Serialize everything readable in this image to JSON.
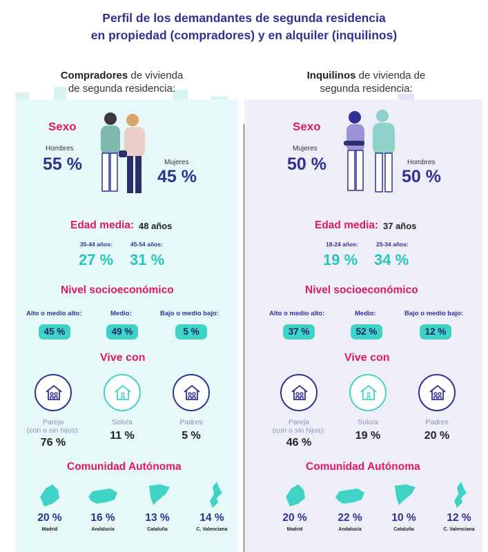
{
  "title": {
    "line1": "Perfil de los demandantes de segunda residencia",
    "line2": "en propiedad (compradores) y en alquiler (inquilinos)"
  },
  "colors": {
    "navy": "#2e3192",
    "pink": "#e0195e",
    "teal": "#3fd3c6",
    "left_bg": "#e6f8f7",
    "right_bg": "#eeeef8"
  },
  "left": {
    "head_bold": "Compradores",
    "head_rest1": " de vivienda",
    "head_line2": "de segunda residencia:",
    "sexo": {
      "title": "Sexo",
      "a_label": "Hombres",
      "a_value": "55 %",
      "b_label": "Mujeres",
      "b_value": "45 %"
    },
    "edad": {
      "title": "Edad media:",
      "value": "48 años",
      "g1_label": "35-44 años:",
      "g1_value": "27 %",
      "g2_label": "45-54 años:",
      "g2_value": "31 %"
    },
    "nivel": {
      "title": "Nivel socioeconómico",
      "items": [
        {
          "label": "Alto o medio alto:",
          "value": "45 %"
        },
        {
          "label": "Medio:",
          "value": "49 %"
        },
        {
          "label": "Bajo o medio bajo:",
          "value": "5 %"
        }
      ]
    },
    "vive": {
      "title": "Vive con",
      "items": [
        {
          "label1": "Pareja",
          "label2": "(con o sin hijos):",
          "value": "76 %"
        },
        {
          "label1": "Solo/a",
          "label2": "",
          "value": "11 %"
        },
        {
          "label1": "Padres",
          "label2": "",
          "value": "5 %"
        }
      ]
    },
    "comunidad": {
      "title": "Comunidad Autónoma",
      "items": [
        {
          "name": "Madrid",
          "value": "20 %"
        },
        {
          "name": "Andalucía",
          "value": "16 %"
        },
        {
          "name": "Cataluña",
          "value": "13 %"
        },
        {
          "name": "C. Valenciana",
          "value": "14 %"
        }
      ]
    }
  },
  "right": {
    "head_bold": "Inquilinos",
    "head_rest1": " de vivienda de",
    "head_line2": "segunda residencia:",
    "sexo": {
      "title": "Sexo",
      "a_label": "Mujeres",
      "a_value": "50 %",
      "b_label": "Hombres",
      "b_value": "50 %"
    },
    "edad": {
      "title": "Edad media:",
      "value": "37 años",
      "g1_label": "18-24 años:",
      "g1_value": "19 %",
      "g2_label": "25-34 años:",
      "g2_value": "34 %"
    },
    "nivel": {
      "title": "Nivel socioeconómico",
      "items": [
        {
          "label": "Alto o medio alto:",
          "value": "37 %"
        },
        {
          "label": "Medio:",
          "value": "52 %"
        },
        {
          "label": "Bajo o medio bajo:",
          "value": "12 %"
        }
      ]
    },
    "vive": {
      "title": "Vive con",
      "items": [
        {
          "label1": "Pareja",
          "label2": "(con o sin hijos):",
          "value": "46 %"
        },
        {
          "label1": "Solo/a",
          "label2": "",
          "value": "19 %"
        },
        {
          "label1": "Padres",
          "label2": "",
          "value": "20 %"
        }
      ]
    },
    "comunidad": {
      "title": "Comunidad Autónoma",
      "items": [
        {
          "name": "Madrid",
          "value": "20 %"
        },
        {
          "name": "Andalucía",
          "value": "22 %"
        },
        {
          "name": "Cataluña",
          "value": "10 %"
        },
        {
          "name": "C. Valenciana",
          "value": "12 %"
        }
      ]
    }
  }
}
